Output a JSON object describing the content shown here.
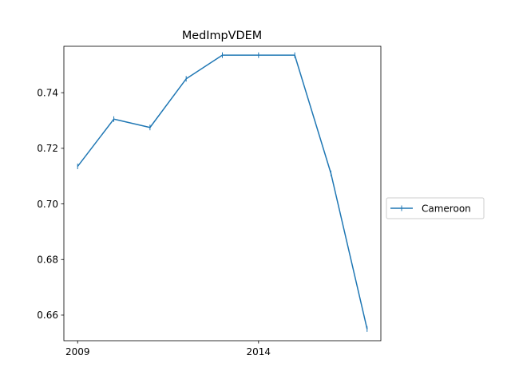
{
  "chart_data": {
    "type": "line",
    "title": "MedImpVDEM",
    "xlabel": "",
    "ylabel": "",
    "x": [
      2009,
      2010,
      2011,
      2012,
      2013,
      2014,
      2015,
      2016,
      2017
    ],
    "series": [
      {
        "name": "Cameroon",
        "color": "#1f77b4",
        "marker": "vertical-tick",
        "values": [
          0.7135,
          0.7305,
          0.7275,
          0.745,
          0.7535,
          0.7535,
          0.7535,
          0.711,
          0.655
        ]
      }
    ],
    "xticks": [
      2009,
      2014
    ],
    "xtick_labels": [
      "2009",
      "2014"
    ],
    "yticks": [
      0.66,
      0.68,
      0.7,
      0.72,
      0.74
    ],
    "ytick_labels": [
      "0.66",
      "0.68",
      "0.70",
      "0.72",
      "0.74"
    ],
    "xlim": [
      2008.62,
      2017.38
    ],
    "ylim": [
      0.6508,
      0.7567
    ],
    "grid": false,
    "legend_position": "outside-right"
  }
}
